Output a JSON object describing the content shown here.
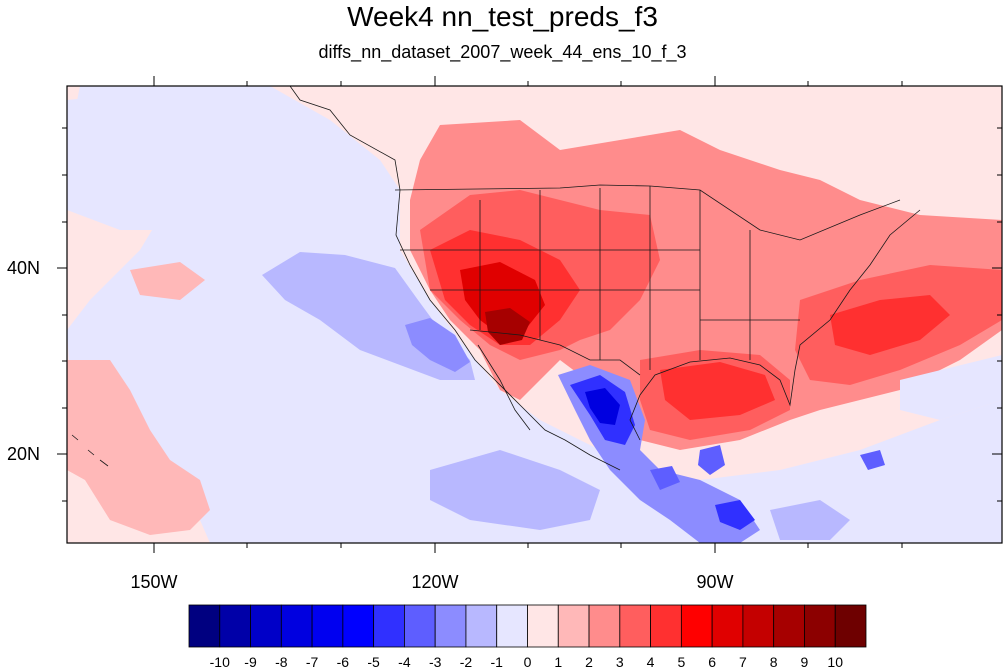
{
  "title": "Week4 nn_test_preds_f3",
  "subtitle": "diffs_nn_dataset_2007_week_44_ens_10_f_3",
  "axes": {
    "lon_labels": [
      "150W",
      "120W",
      "90W"
    ],
    "lat_labels": [
      "40N",
      "20N"
    ]
  },
  "colorbar": {
    "labels": [
      "-10",
      "-9",
      "-8",
      "-7",
      "-6",
      "-5",
      "-4",
      "-3",
      "-2",
      "-1",
      "0",
      "1",
      "2",
      "3",
      "4",
      "5",
      "6",
      "7",
      "8",
      "9",
      "10"
    ],
    "colors": [
      "#000080",
      "#0000a8",
      "#0000c8",
      "#0000e0",
      "#0000f0",
      "#0000ff",
      "#3030ff",
      "#5e5eff",
      "#8c8cff",
      "#b8b8ff",
      "#e6e6ff",
      "#ffe6e6",
      "#ffb8b8",
      "#ff8c8c",
      "#ff5e5e",
      "#ff3030",
      "#ff0000",
      "#e00000",
      "#c40000",
      "#a60000",
      "#8c0000",
      "#6e0000"
    ]
  }
}
